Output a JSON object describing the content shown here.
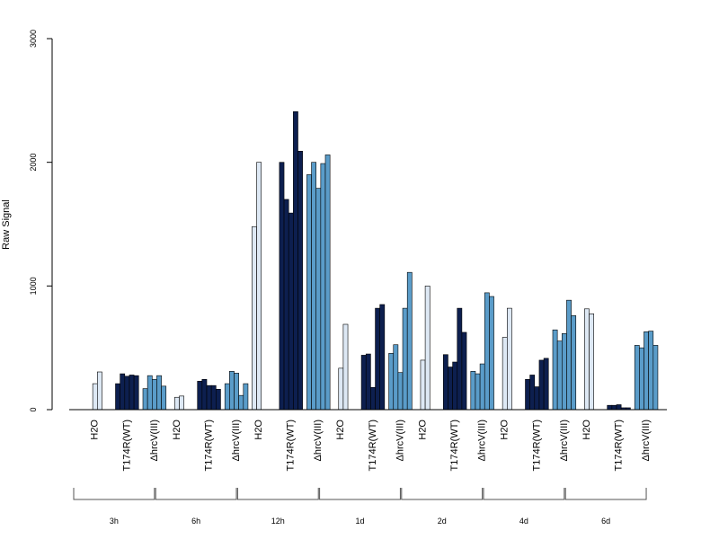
{
  "chart_data": {
    "type": "bar",
    "title": "",
    "ylabel": "Raw Signal",
    "xlabel": "",
    "ylim": [
      0,
      3000
    ],
    "yticks": [
      0,
      1000,
      2000,
      3000
    ],
    "grid": false,
    "legend": "none",
    "colors": {
      "H2O": "#dde8f4",
      "T174R(WT)": "#0d1f4f",
      "ΔhrcV(III)": "#5a9cc9"
    },
    "groups": [
      {
        "label": "3h",
        "treatments": [
          {
            "name": "H2O",
            "values": [
              0,
              210,
              305
            ]
          },
          {
            "name": "T174R(WT)",
            "values": [
              210,
              290,
              270,
              280,
              275
            ]
          },
          {
            "name": "ΔhrcV(III)",
            "values": [
              170,
              275,
              245,
              275,
              190
            ]
          }
        ]
      },
      {
        "label": "6h",
        "treatments": [
          {
            "name": "H2O",
            "values": [
              0,
              100,
              110
            ]
          },
          {
            "name": "T174R(WT)",
            "values": [
              230,
              245,
              195,
              195,
              165
            ]
          },
          {
            "name": "ΔhrcV(III)",
            "values": [
              210,
              310,
              295,
              115,
              210
            ]
          }
        ]
      },
      {
        "label": "12h",
        "treatments": [
          {
            "name": "H2O",
            "values": [
              1480,
              2000,
              0
            ]
          },
          {
            "name": "T174R(WT)",
            "values": [
              2000,
              1700,
              1590,
              2410,
              2090
            ]
          },
          {
            "name": "ΔhrcV(III)",
            "values": [
              1900,
              2000,
              1790,
              1990,
              2060
            ]
          }
        ]
      },
      {
        "label": "1d",
        "treatments": [
          {
            "name": "H2O",
            "values": [
              0,
              335,
              690
            ]
          },
          {
            "name": "T174R(WT)",
            "values": [
              440,
              450,
              180,
              820,
              850
            ]
          },
          {
            "name": "ΔhrcV(III)",
            "values": [
              455,
              525,
              300,
              820,
              1110
            ]
          }
        ]
      },
      {
        "label": "2d",
        "treatments": [
          {
            "name": "H2O",
            "values": [
              0,
              400,
              1000
            ]
          },
          {
            "name": "T174R(WT)",
            "values": [
              445,
              345,
              385,
              820,
              625
            ]
          },
          {
            "name": "ΔhrcV(III)",
            "values": [
              310,
              290,
              370,
              945,
              915
            ]
          }
        ]
      },
      {
        "label": "4d",
        "treatments": [
          {
            "name": "H2O",
            "values": [
              0,
              585,
              820
            ]
          },
          {
            "name": "T174R(WT)",
            "values": [
              245,
              280,
              185,
              400,
              415
            ]
          },
          {
            "name": "ΔhrcV(III)",
            "values": [
              645,
              555,
              615,
              885,
              760
            ]
          }
        ]
      },
      {
        "label": "6d",
        "treatments": [
          {
            "name": "H2O",
            "values": [
              0,
              815,
              775
            ]
          },
          {
            "name": "T174R(WT)",
            "values": [
              35,
              35,
              40,
              15,
              15
            ]
          },
          {
            "name": "ΔhrcV(III)",
            "values": [
              520,
              500,
              630,
              635,
              520
            ]
          }
        ]
      }
    ]
  }
}
